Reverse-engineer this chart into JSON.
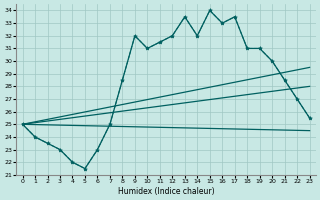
{
  "xlabel": "Humidex (Indice chaleur)",
  "xlim": [
    -0.5,
    23.5
  ],
  "ylim": [
    21,
    34.5
  ],
  "yticks": [
    21,
    22,
    23,
    24,
    25,
    26,
    27,
    28,
    29,
    30,
    31,
    32,
    33,
    34
  ],
  "xticks": [
    0,
    1,
    2,
    3,
    4,
    5,
    6,
    7,
    8,
    9,
    10,
    11,
    12,
    13,
    14,
    15,
    16,
    17,
    18,
    19,
    20,
    21,
    22,
    23
  ],
  "bg_color": "#c8e8e4",
  "grid_color": "#a0c8c4",
  "line_color": "#006060",
  "jagged": [
    25.0,
    24.0,
    23.5,
    23.0,
    22.0,
    21.5,
    23.0,
    25.0,
    28.5,
    32.0,
    31.0,
    31.5,
    32.0,
    33.5,
    32.0,
    34.0,
    33.0,
    33.5,
    31.0,
    31.0,
    30.0,
    28.5,
    27.0,
    25.5
  ],
  "smooth": [
    25.0,
    24.0,
    23.5,
    23.0,
    22.0,
    21.5,
    23.0,
    25.0,
    28.5,
    32.0,
    31.0,
    31.5,
    32.0,
    33.5,
    32.0,
    34.0,
    33.0,
    33.5,
    31.0,
    31.0,
    30.0,
    28.5,
    27.0,
    25.5
  ],
  "line_upper": [
    [
      0,
      23
    ],
    [
      25.0,
      29.5
    ]
  ],
  "line_mid": [
    [
      0,
      23
    ],
    [
      25.0,
      28.0
    ]
  ],
  "line_lower": [
    [
      0,
      23
    ],
    [
      25.0,
      24.5
    ]
  ]
}
